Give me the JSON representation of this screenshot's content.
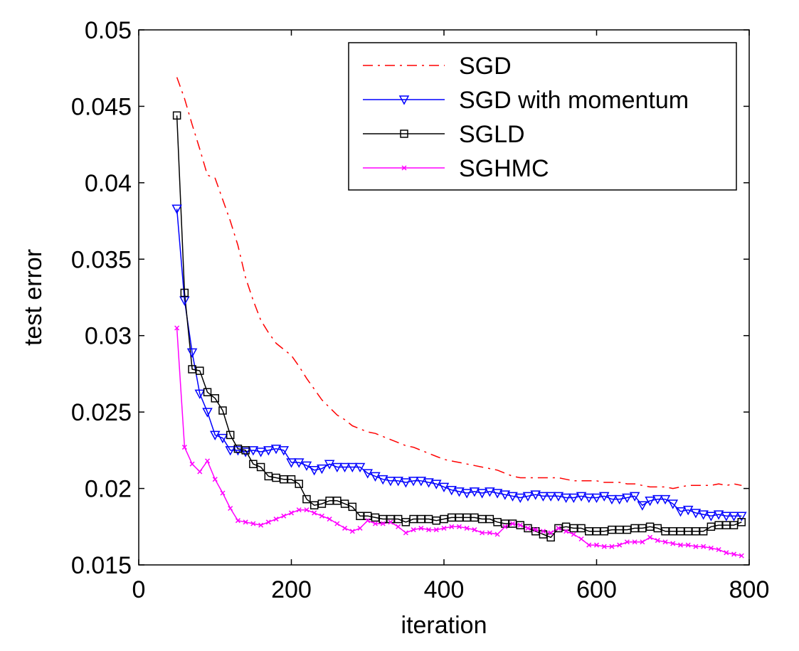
{
  "chart_data": {
    "type": "line",
    "title": "",
    "xlabel": "iteration",
    "ylabel": "test error",
    "xlim": [
      0,
      800
    ],
    "ylim": [
      0.015,
      0.05
    ],
    "xticks": [
      0,
      200,
      400,
      600,
      800
    ],
    "xtick_labels": [
      "0",
      "200",
      "400",
      "600",
      "800"
    ],
    "yticks": [
      0.015,
      0.02,
      0.025,
      0.03,
      0.035,
      0.04,
      0.045,
      0.05
    ],
    "ytick_labels": [
      "0.015",
      "0.02",
      "0.025",
      "0.03",
      "0.035",
      "0.04",
      "0.045",
      "0.05"
    ],
    "grid": false,
    "legend_position": "top-right",
    "x": [
      50,
      60,
      70,
      80,
      90,
      100,
      110,
      120,
      130,
      140,
      150,
      160,
      170,
      180,
      190,
      200,
      210,
      220,
      230,
      240,
      250,
      260,
      270,
      280,
      290,
      300,
      310,
      320,
      330,
      340,
      350,
      360,
      370,
      380,
      390,
      400,
      410,
      420,
      430,
      440,
      450,
      460,
      470,
      480,
      490,
      500,
      510,
      520,
      530,
      540,
      550,
      560,
      570,
      580,
      590,
      600,
      610,
      620,
      630,
      640,
      650,
      660,
      670,
      680,
      690,
      700,
      710,
      720,
      730,
      740,
      750,
      760,
      770,
      780,
      790
    ],
    "series": [
      {
        "name": "SGD",
        "color": "#ff0000",
        "dash": "dashdot",
        "marker": "none",
        "values": [
          0.0469,
          0.0455,
          0.0438,
          0.0422,
          0.0405,
          0.0403,
          0.0389,
          0.0375,
          0.0359,
          0.0338,
          0.0323,
          0.031,
          0.0302,
          0.0295,
          0.0291,
          0.0287,
          0.028,
          0.0272,
          0.0265,
          0.0258,
          0.0253,
          0.0248,
          0.0245,
          0.0241,
          0.0239,
          0.0237,
          0.0236,
          0.0234,
          0.0232,
          0.023,
          0.0228,
          0.0227,
          0.0225,
          0.0223,
          0.0221,
          0.0219,
          0.0218,
          0.0217,
          0.0216,
          0.0215,
          0.0214,
          0.0213,
          0.0212,
          0.021,
          0.0208,
          0.0207,
          0.0207,
          0.0207,
          0.0207,
          0.0207,
          0.0207,
          0.0206,
          0.0205,
          0.0205,
          0.0205,
          0.0205,
          0.0204,
          0.0204,
          0.0204,
          0.0203,
          0.0203,
          0.0202,
          0.0201,
          0.0201,
          0.0201,
          0.02,
          0.0201,
          0.0202,
          0.0202,
          0.0202,
          0.0202,
          0.0203,
          0.0202,
          0.0203,
          0.0202
        ]
      },
      {
        "name": "SGD with momentum",
        "color": "#0000ff",
        "dash": "solid",
        "marker": "triangle-down",
        "values": [
          0.0383,
          0.0323,
          0.0289,
          0.0262,
          0.025,
          0.0235,
          0.0233,
          0.0225,
          0.0225,
          0.0224,
          0.0225,
          0.0224,
          0.0225,
          0.0226,
          0.0225,
          0.0217,
          0.0217,
          0.0215,
          0.0212,
          0.0213,
          0.0216,
          0.0214,
          0.0214,
          0.0214,
          0.0214,
          0.021,
          0.0208,
          0.0206,
          0.0205,
          0.0205,
          0.0204,
          0.0205,
          0.0205,
          0.0204,
          0.0203,
          0.0201,
          0.0199,
          0.0198,
          0.0197,
          0.0198,
          0.0197,
          0.0198,
          0.0197,
          0.0196,
          0.0195,
          0.0194,
          0.0195,
          0.0196,
          0.0195,
          0.0195,
          0.0195,
          0.0194,
          0.0194,
          0.0195,
          0.0194,
          0.0194,
          0.0195,
          0.0193,
          0.0193,
          0.0194,
          0.0195,
          0.0189,
          0.0192,
          0.0193,
          0.0193,
          0.019,
          0.0185,
          0.0186,
          0.0184,
          0.0183,
          0.0182,
          0.0183,
          0.0182,
          0.0182,
          0.0182
        ]
      },
      {
        "name": "SGLD",
        "color": "#000000",
        "dash": "solid",
        "marker": "square",
        "values": [
          0.0444,
          0.0328,
          0.0278,
          0.0277,
          0.0263,
          0.0259,
          0.0251,
          0.0235,
          0.0226,
          0.0225,
          0.0216,
          0.0214,
          0.0208,
          0.0207,
          0.0206,
          0.0206,
          0.0203,
          0.0193,
          0.0189,
          0.019,
          0.0192,
          0.0192,
          0.019,
          0.0188,
          0.0182,
          0.0182,
          0.0181,
          0.018,
          0.018,
          0.018,
          0.0178,
          0.018,
          0.018,
          0.018,
          0.0179,
          0.018,
          0.0181,
          0.0181,
          0.0181,
          0.0181,
          0.018,
          0.018,
          0.0178,
          0.0177,
          0.0177,
          0.0176,
          0.0174,
          0.0172,
          0.017,
          0.0168,
          0.0174,
          0.0175,
          0.0174,
          0.0174,
          0.0172,
          0.0172,
          0.0172,
          0.0173,
          0.0173,
          0.0173,
          0.0174,
          0.0174,
          0.0175,
          0.0174,
          0.0172,
          0.0172,
          0.0172,
          0.0172,
          0.0172,
          0.0172,
          0.0175,
          0.0176,
          0.0176,
          0.0176,
          0.0178
        ]
      },
      {
        "name": "SGHMC",
        "color": "#ff00ff",
        "dash": "solid",
        "marker": "x",
        "values": [
          0.0305,
          0.0227,
          0.0216,
          0.0211,
          0.0218,
          0.0206,
          0.0197,
          0.0187,
          0.0179,
          0.0178,
          0.0177,
          0.0176,
          0.0178,
          0.018,
          0.0182,
          0.0184,
          0.0186,
          0.0186,
          0.0184,
          0.0182,
          0.018,
          0.0177,
          0.0174,
          0.0172,
          0.0174,
          0.0179,
          0.0177,
          0.0177,
          0.0178,
          0.0175,
          0.0171,
          0.0173,
          0.0174,
          0.0173,
          0.0173,
          0.0174,
          0.0175,
          0.0175,
          0.0174,
          0.0173,
          0.0171,
          0.0171,
          0.017,
          0.0175,
          0.0177,
          0.0176,
          0.0174,
          0.0173,
          0.0172,
          0.0171,
          0.0174,
          0.0172,
          0.017,
          0.0167,
          0.0163,
          0.0163,
          0.0162,
          0.0162,
          0.0163,
          0.0165,
          0.0165,
          0.0165,
          0.0168,
          0.0166,
          0.0165,
          0.0164,
          0.0163,
          0.0163,
          0.0162,
          0.0162,
          0.0161,
          0.016,
          0.0158,
          0.0157,
          0.0156
        ]
      }
    ]
  }
}
